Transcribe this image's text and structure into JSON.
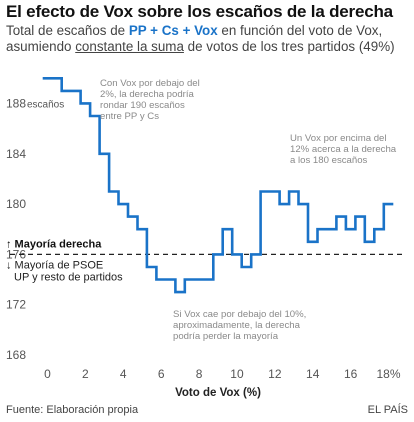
{
  "title": "El efecto de Vox sobre los escaños de la derecha",
  "subtitle": {
    "line1_a": "Total de escaños de ",
    "line1_hl": "PP + Cs + Vox",
    "line1_b": " en función del voto de Vox,",
    "line2_a": "asumiendo ",
    "line2_ul": "constante la suma",
    "line2_b": " de votos de los tres partidos (49%)"
  },
  "chart_data": {
    "type": "line",
    "step": true,
    "xlabel": "Voto de Vox (%)",
    "ylim": [
      168,
      190.5
    ],
    "xlim": [
      -0.5,
      18.5
    ],
    "x_ticks": [
      0,
      2,
      4,
      6,
      8,
      10,
      12,
      14,
      16,
      18
    ],
    "x_tick_labels": [
      "0",
      "2",
      "4",
      "6",
      "8",
      "10",
      "12",
      "14",
      "16",
      "18%"
    ],
    "y_ticks": [
      168,
      172,
      176,
      180,
      184,
      188
    ],
    "y_tick_labels": [
      "168",
      "172",
      "176",
      "180",
      "184",
      "188"
    ],
    "y_unit_label": "escaños",
    "line_color": "#1a73c8",
    "series": [
      {
        "x": [
          0,
          0.5,
          1.0,
          1.5,
          2.0,
          2.5,
          3.0,
          3.5,
          4.0,
          4.5,
          5.0,
          5.5,
          6.0,
          6.5,
          7.0,
          7.5,
          8.0,
          8.5,
          9.0,
          9.5,
          10.0,
          10.5,
          11.0,
          11.5,
          12.0,
          12.5,
          13.0,
          13.5,
          14.0,
          14.5,
          15.0,
          15.5,
          16.0,
          16.5,
          17.0,
          17.5,
          18.0
        ],
        "y": [
          190,
          190,
          189,
          189,
          188,
          187,
          184,
          181,
          180,
          179,
          178,
          175,
          174,
          174,
          173,
          174,
          174,
          174,
          176,
          178,
          176,
          175,
          176,
          181,
          181,
          180,
          181,
          180,
          177,
          178,
          178,
          179,
          178,
          179,
          177,
          178,
          180
        ]
      }
    ],
    "threshold": {
      "value": 176,
      "label_above": "↑ Mayoría derecha",
      "label_below_1": "↓ Mayoría de PSOE",
      "label_below_2": "UP y resto de partidos"
    },
    "annotations": [
      {
        "lines": [
          "Con Vox por debajo del",
          "2%, la derecha podría",
          "rondar 190 escaños",
          "entre PP y Cs"
        ]
      },
      {
        "lines": [
          "Un Vox por encima del",
          "12% acerca a la derecha",
          "a los 180 escaños"
        ]
      },
      {
        "lines": [
          "Si Vox cae por debajo del 10%,",
          "aproximadamente, la derecha",
          "podría perder la mayoría"
        ]
      }
    ]
  },
  "footer": {
    "source": "Fuente: Elaboración propia",
    "brand": "EL PAÍS"
  }
}
